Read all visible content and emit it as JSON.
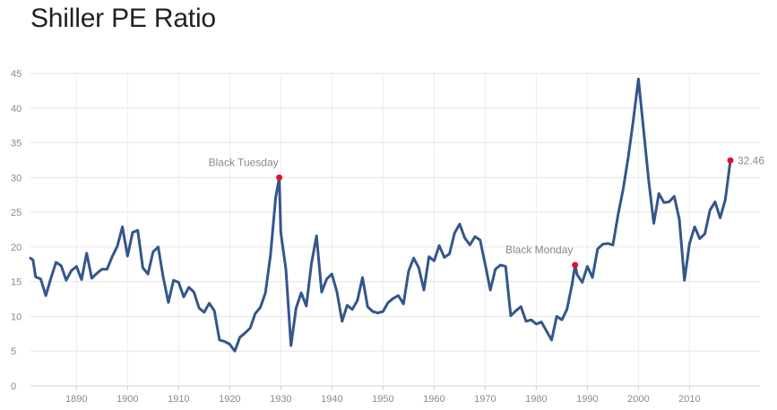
{
  "title": "Shiller PE Ratio",
  "chart_data": {
    "type": "line",
    "title": "Shiller PE Ratio",
    "xlabel": "",
    "ylabel": "",
    "xlim": [
      1881,
      2018
    ],
    "ylim": [
      0,
      45
    ],
    "y_ticks": [
      0,
      5,
      10,
      15,
      20,
      25,
      30,
      35,
      40,
      45
    ],
    "x_ticks": [
      1890,
      1900,
      1910,
      1920,
      1930,
      1940,
      1950,
      1960,
      1970,
      1980,
      1990,
      2000,
      2010
    ],
    "grid": true,
    "legend": "none",
    "series_color": "#34568b",
    "marker_color": "#e3122a",
    "series": [
      {
        "x": [
          1881,
          1881.5,
          1882,
          1883,
          1884,
          1885,
          1886,
          1887,
          1888,
          1889,
          1890,
          1891,
          1892,
          1893,
          1894,
          1895,
          1896,
          1897,
          1898,
          1899,
          1900,
          1901,
          1902,
          1903,
          1904,
          1905,
          1906,
          1907,
          1908,
          1909,
          1910,
          1911,
          1912,
          1913,
          1914,
          1915,
          1916,
          1917,
          1918,
          1919,
          1920,
          1921,
          1922,
          1923,
          1924,
          1925,
          1926,
          1927,
          1928,
          1929,
          1929.7,
          1930,
          1931,
          1932,
          1933,
          1934,
          1935,
          1936,
          1937,
          1938,
          1939,
          1940,
          1941,
          1942,
          1943,
          1944,
          1945,
          1946,
          1947,
          1948,
          1949,
          1950,
          1951,
          1952,
          1953,
          1954,
          1955,
          1956,
          1957,
          1958,
          1959,
          1960,
          1961,
          1962,
          1963,
          1964,
          1965,
          1966,
          1967,
          1968,
          1969,
          1970,
          1971,
          1972,
          1973,
          1974,
          1975,
          1976,
          1977,
          1978,
          1979,
          1980,
          1981,
          1982,
          1983,
          1984,
          1985,
          1986,
          1987,
          1987.6,
          1988,
          1989,
          1990,
          1991,
          1992,
          1993,
          1994,
          1995,
          1996,
          1997,
          1998,
          1999,
          2000,
          2001,
          2002,
          2003,
          2004,
          2005,
          2006,
          2007,
          2008,
          2009,
          2010,
          2011,
          2012,
          2013,
          2014,
          2015,
          2016,
          2017,
          2018
        ],
        "y": [
          18.4,
          18.1,
          15.7,
          15.4,
          13.0,
          15.5,
          17.8,
          17.3,
          15.2,
          16.6,
          17.2,
          15.3,
          19.1,
          15.5,
          16.2,
          16.8,
          16.8,
          18.6,
          20.1,
          22.9,
          18.7,
          22.1,
          22.4,
          17.0,
          16.1,
          19.3,
          20.0,
          15.6,
          12.0,
          15.2,
          14.9,
          12.8,
          14.2,
          13.5,
          11.2,
          10.6,
          11.9,
          10.8,
          6.6,
          6.4,
          6.0,
          5.0,
          7.0,
          7.6,
          8.3,
          10.4,
          11.3,
          13.4,
          18.9,
          27.1,
          30.0,
          22.1,
          16.8,
          5.8,
          11.2,
          13.4,
          11.5,
          17.6,
          21.6,
          13.5,
          15.4,
          16.1,
          13.5,
          9.3,
          11.6,
          11.0,
          12.3,
          15.6,
          11.4,
          10.7,
          10.5,
          10.7,
          12.0,
          12.6,
          13.0,
          11.8,
          16.5,
          18.4,
          17.0,
          13.8,
          18.6,
          18.0,
          20.2,
          18.5,
          19.0,
          22.0,
          23.3,
          21.3,
          20.3,
          21.5,
          21.0,
          17.5,
          13.8,
          16.8,
          17.4,
          17.2,
          10.1,
          10.8,
          11.4,
          9.3,
          9.5,
          8.9,
          9.2,
          7.9,
          6.6,
          10.0,
          9.5,
          11.0,
          14.6,
          17.4,
          16.0,
          14.9,
          17.2,
          15.6,
          19.7,
          20.4,
          20.5,
          20.3,
          24.6,
          28.3,
          32.9,
          38.3,
          44.2,
          36.9,
          29.6,
          23.4,
          27.7,
          26.4,
          26.5,
          27.3,
          24.0,
          15.2,
          20.5,
          22.9,
          21.2,
          21.9,
          25.3,
          26.5,
          24.2,
          26.8,
          32.46
        ]
      }
    ],
    "annotations": [
      {
        "label": "Black Tuesday",
        "x": 1929.7,
        "y": 30.0
      },
      {
        "label": "Black Monday",
        "x": 1987.6,
        "y": 17.4
      }
    ],
    "end_label": "32.46"
  }
}
